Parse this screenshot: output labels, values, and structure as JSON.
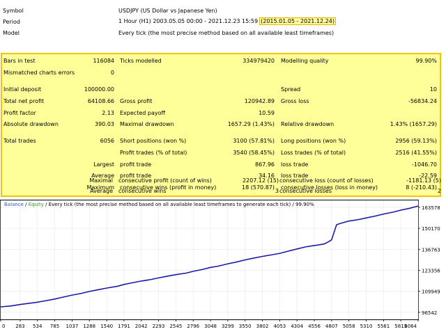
{
  "meta": {
    "symbol_label": "Symbol",
    "symbol_value": "USDJPY (US Dollar vs Japanese Yen)",
    "period_label": "Period",
    "period_value": "1 Hour (H1) 2003.05.05 00:00 - 2021.12.23 15:59",
    "period_highlight": "(2015.01.05 - 2021.12.24)",
    "model_label": "Model",
    "model_value": "Every tick (the most precise method based on all available least timeframes)"
  },
  "stats": {
    "bars_in_test": {
      "label": "Bars in test",
      "value": "116084"
    },
    "ticks_modelled": {
      "label": "Ticks modelled",
      "value": "334979420"
    },
    "modelling_quality": {
      "label": "Modelling quality",
      "value": "99.90%"
    },
    "mismatched_errors": {
      "label": "Mismatched charts errors",
      "value": "0"
    },
    "initial_deposit": {
      "label": "Initial deposit",
      "value": "100000.00"
    },
    "spread": {
      "label": "Spread",
      "value": "10"
    },
    "total_net_profit": {
      "label": "Total net profit",
      "value": "64108.66"
    },
    "gross_profit": {
      "label": "Gross profit",
      "value": "120942.89"
    },
    "gross_loss": {
      "label": "Gross loss",
      "value": "-56834.24"
    },
    "profit_factor": {
      "label": "Profit factor",
      "value": "2.13"
    },
    "expected_payoff": {
      "label": "Expected payoff",
      "value": "10.59"
    },
    "absolute_drawdown": {
      "label": "Absolute drawdown",
      "value": "390.03"
    },
    "maximal_drawdown": {
      "label": "Maximal drawdown",
      "value": "1657.29 (1.43%)"
    },
    "relative_drawdown": {
      "label": "Relative drawdown",
      "value": "1.43% (1657.29)"
    },
    "total_trades": {
      "label": "Total trades",
      "value": "6056"
    },
    "short_positions": {
      "label": "Short positions (won %)",
      "value": "3100 (57.81%)"
    },
    "long_positions": {
      "label": "Long positions (won %)",
      "value": "2956 (59.13%)"
    },
    "profit_trades": {
      "label": "Profit trades (% of total)",
      "value": "3540 (58.45%)"
    },
    "loss_trades": {
      "label": "Loss trades (% of total)",
      "value": "2516 (41.55%)"
    },
    "largest_label": "Largest",
    "largest_profit": {
      "label": "profit trade",
      "value": "867.96"
    },
    "largest_loss": {
      "label": "loss trade",
      "value": "-1046.70"
    },
    "average_label": "Average",
    "average_profit": {
      "label": "profit trade",
      "value": "34.16"
    },
    "average_loss": {
      "label": "loss trade",
      "value": "-22.59"
    },
    "maximum_label": "Maximum",
    "max_consec_wins": {
      "label": "consecutive wins (profit in money)",
      "value": "18 (570.87)"
    },
    "max_consec_losses": {
      "label": "consecutive losses (loss in money)",
      "value": "8 (-210.43)"
    },
    "maximal_label": "Maximal",
    "maximal_consec_profit": {
      "label": "consecutive profit (count of wins)",
      "value": "2207.12 (15)"
    },
    "maximal_consec_loss": {
      "label": "consecutive loss (count of losses)",
      "value": "-1181.13 (5)"
    },
    "average2_label": "Average",
    "avg_consec_wins": {
      "label": "consecutive wins",
      "value": "3"
    },
    "avg_consec_losses": {
      "label": "consecutive losses",
      "value": "2"
    }
  },
  "legend": {
    "balance": "Balance",
    "sep1": " / ",
    "equity": "Equity",
    "sep2": " / ",
    "rest": "Every tick (the most precise method based on all available least timeframes to generate each tick)",
    "sep3": " / ",
    "quality": "99.90%"
  },
  "colors": {
    "balance": "#1a1aa6",
    "equity": "#2e8b2e",
    "highlight_fill": "#ffff99",
    "highlight_border": "#f5c400",
    "legend_blue": "#3355cc",
    "legend_green": "#339933"
  },
  "chart_data": {
    "type": "line",
    "title": "",
    "xlabel": "",
    "ylabel": "",
    "x_ticks": [
      "0",
      "283",
      "534",
      "785",
      "1037",
      "1288",
      "1540",
      "1791",
      "2042",
      "2293",
      "2545",
      "2796",
      "3048",
      "3299",
      "3550",
      "3802",
      "4053",
      "4304",
      "4556",
      "4807",
      "5058",
      "5310",
      "5561",
      "5813",
      "6064"
    ],
    "y_ticks": [
      "96542",
      "109949",
      "123356",
      "136763",
      "150170",
      "163578"
    ],
    "xlim": [
      0,
      6064
    ],
    "ylim": [
      92000,
      168000
    ],
    "series": [
      {
        "name": "Balance",
        "x": [
          0,
          150,
          283,
          400,
          534,
          600,
          785,
          900,
          1037,
          1160,
          1288,
          1400,
          1540,
          1700,
          1791,
          1900,
          2042,
          2160,
          2293,
          2400,
          2545,
          2700,
          2796,
          2920,
          3048,
          3160,
          3299,
          3420,
          3550,
          3680,
          3802,
          3920,
          4053,
          4180,
          4304,
          4420,
          4556,
          4620,
          4700,
          4760,
          4807,
          4880,
          4950,
          5058,
          5200,
          5310,
          5440,
          5561,
          5700,
          5813,
          5940,
          6064
        ],
        "y": [
          100000,
          100600,
          101500,
          102200,
          103000,
          103500,
          105000,
          106200,
          107500,
          108500,
          109800,
          110800,
          112000,
          113200,
          114300,
          115300,
          116500,
          117300,
          118500,
          119400,
          120600,
          121600,
          122700,
          123800,
          125200,
          126000,
          127500,
          128600,
          130000,
          131200,
          132200,
          133100,
          134200,
          135600,
          137000,
          138200,
          139200,
          139600,
          140200,
          141500,
          142800,
          152500,
          153500,
          154800,
          155800,
          156800,
          158000,
          159300,
          160500,
          161800,
          163000,
          164400
        ]
      }
    ]
  }
}
